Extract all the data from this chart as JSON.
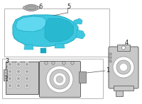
{
  "bg_color": "#ffffff",
  "blue": "#3ec8e0",
  "blue2": "#60d8f0",
  "blue_dark": "#18a8c0",
  "blue_mid": "#28b8d0",
  "gray": "#909090",
  "lgray": "#c8c8c8",
  "dgray": "#606060",
  "mgray": "#a8a8a8",
  "line_color": "#555555",
  "label_color": "#222222",
  "box_edge": "#aaaaaa",
  "white": "#ffffff"
}
